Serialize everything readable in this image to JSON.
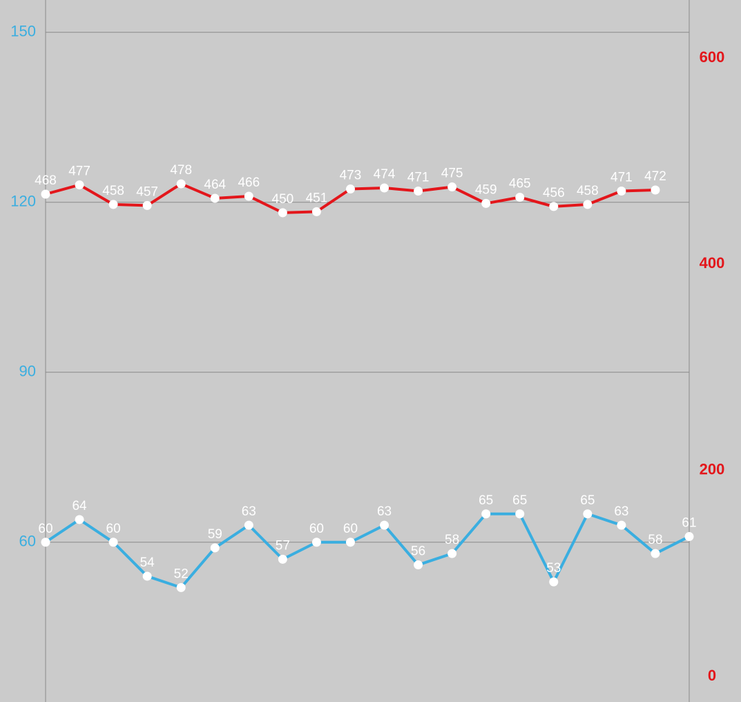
{
  "chart_data": {
    "type": "line",
    "categories": [
      null,
      null,
      null,
      null,
      null,
      null,
      null,
      null,
      null,
      null,
      null,
      null,
      null,
      null,
      null,
      null,
      null,
      null,
      null,
      null
    ],
    "series": [
      {
        "name": null,
        "color": "#3aaee0",
        "axis": "y",
        "values": [
          60,
          64,
          60,
          54,
          52,
          59,
          63,
          57,
          60,
          60,
          63,
          56,
          58,
          65,
          65,
          53,
          65,
          63,
          58,
          61
        ]
      },
      {
        "name": null,
        "color": "#e3161b",
        "axis": "y2",
        "values": [
          468,
          477,
          458,
          457,
          478,
          464,
          466,
          450,
          451,
          473,
          474,
          471,
          475,
          459,
          465,
          456,
          458,
          471,
          472,
          null
        ]
      }
    ],
    "ylim": [
      31.8,
      155.7
    ],
    "yticks": [
      60,
      90,
      120,
      150
    ],
    "ytick_color": "#3aaee0",
    "y2lim": [
      -24.8,
      656.4
    ],
    "y2ticks": [
      0,
      200,
      400,
      600
    ],
    "y2tick_color": "#e3161b",
    "grid": true
  }
}
